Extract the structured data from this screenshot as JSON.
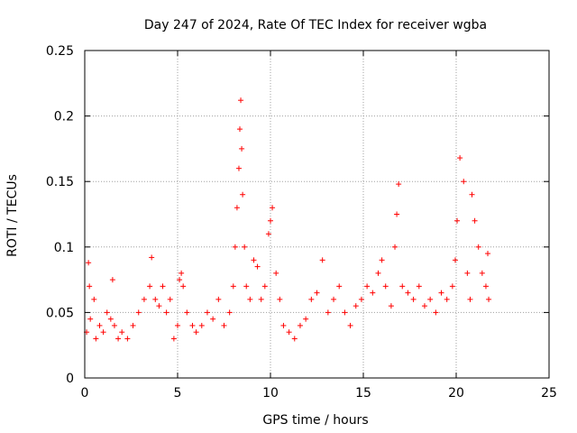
{
  "chart_data": {
    "type": "scatter",
    "title": "Day 247 of 2024, Rate Of TEC Index for receiver wgba",
    "xlabel": "GPS time / hours",
    "ylabel": "ROTI / TECUs",
    "xlim": [
      0,
      25
    ],
    "ylim": [
      0,
      0.25
    ],
    "xticks": [
      0,
      5,
      10,
      15,
      20,
      25
    ],
    "yticks": [
      0,
      0.05,
      0.1,
      0.15,
      0.2,
      0.25
    ],
    "xtick_labels": [
      "0",
      "5",
      "10",
      "15",
      "20",
      "25"
    ],
    "ytick_labels": [
      "0",
      "0.05",
      "0.1",
      "0.15",
      "0.2",
      "0.25"
    ],
    "grid": true,
    "marker": "+",
    "color": "#ff0000",
    "series": [
      {
        "name": "ROTI",
        "x": [
          0.1,
          0.2,
          0.25,
          0.3,
          0.5,
          0.6,
          0.8,
          1.0,
          1.2,
          1.4,
          1.5,
          1.6,
          1.8,
          2.0,
          2.3,
          2.6,
          2.9,
          3.2,
          3.5,
          3.6,
          3.8,
          4.0,
          4.2,
          4.4,
          4.6,
          4.8,
          5.0,
          5.1,
          5.2,
          5.3,
          5.5,
          5.8,
          6.0,
          6.3,
          6.6,
          6.9,
          7.2,
          7.5,
          7.8,
          8.0,
          8.1,
          8.2,
          8.3,
          8.35,
          8.4,
          8.45,
          8.5,
          8.6,
          8.7,
          8.9,
          9.1,
          9.3,
          9.5,
          9.7,
          9.9,
          10.0,
          10.1,
          10.3,
          10.5,
          10.7,
          11.0,
          11.3,
          11.6,
          11.9,
          12.2,
          12.5,
          12.8,
          13.1,
          13.4,
          13.7,
          14.0,
          14.3,
          14.6,
          14.9,
          15.2,
          15.5,
          15.8,
          16.0,
          16.2,
          16.5,
          16.7,
          16.8,
          16.9,
          17.1,
          17.4,
          17.7,
          18.0,
          18.3,
          18.6,
          18.9,
          19.2,
          19.5,
          19.8,
          19.95,
          20.05,
          20.2,
          20.4,
          20.6,
          20.75,
          20.85,
          21.0,
          21.2,
          21.4,
          21.6,
          21.7,
          21.75
        ],
        "y": [
          0.035,
          0.088,
          0.07,
          0.045,
          0.06,
          0.03,
          0.04,
          0.035,
          0.05,
          0.045,
          0.075,
          0.04,
          0.03,
          0.035,
          0.03,
          0.04,
          0.05,
          0.06,
          0.07,
          0.092,
          0.06,
          0.055,
          0.07,
          0.05,
          0.06,
          0.03,
          0.04,
          0.075,
          0.08,
          0.07,
          0.05,
          0.04,
          0.035,
          0.04,
          0.05,
          0.045,
          0.06,
          0.04,
          0.05,
          0.07,
          0.1,
          0.13,
          0.16,
          0.19,
          0.212,
          0.175,
          0.14,
          0.1,
          0.07,
          0.06,
          0.09,
          0.085,
          0.06,
          0.07,
          0.11,
          0.12,
          0.13,
          0.08,
          0.06,
          0.04,
          0.035,
          0.03,
          0.04,
          0.045,
          0.06,
          0.065,
          0.09,
          0.05,
          0.06,
          0.07,
          0.05,
          0.04,
          0.055,
          0.06,
          0.07,
          0.065,
          0.08,
          0.09,
          0.07,
          0.055,
          0.1,
          0.125,
          0.148,
          0.07,
          0.065,
          0.06,
          0.07,
          0.055,
          0.06,
          0.05,
          0.065,
          0.06,
          0.07,
          0.09,
          0.12,
          0.168,
          0.15,
          0.08,
          0.06,
          0.14,
          0.12,
          0.1,
          0.08,
          0.07,
          0.095,
          0.06
        ]
      }
    ]
  }
}
